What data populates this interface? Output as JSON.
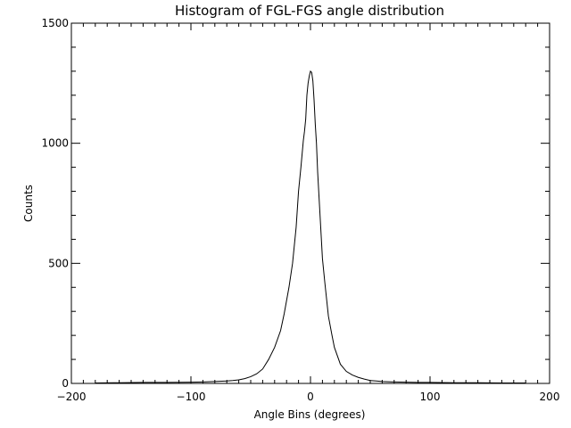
{
  "chart_data": {
    "type": "line",
    "title": "Histogram of FGL-FGS angle distribution",
    "xlabel": "Angle Bins (degrees)",
    "ylabel": "Counts",
    "xlim": [
      -200,
      200
    ],
    "ylim": [
      0,
      1500
    ],
    "x_ticks": [
      -200,
      -100,
      0,
      100,
      200
    ],
    "x_tick_labels": [
      "−200",
      "−100",
      "0",
      "100",
      "200"
    ],
    "y_ticks": [
      0,
      500,
      1000,
      1500
    ],
    "y_tick_labels": [
      "0",
      "500",
      "1000",
      "1500"
    ],
    "grid": false,
    "series": [
      {
        "x": [
          -180,
          -160,
          -140,
          -120,
          -100,
          -90,
          -80,
          -70,
          -65,
          -60,
          -55,
          -50,
          -45,
          -40,
          -35,
          -30,
          -25,
          -22,
          -18,
          -15,
          -12,
          -10,
          -8,
          -6,
          -5,
          -4,
          -3,
          -2,
          -1,
          0,
          1,
          2,
          3,
          4,
          5,
          6,
          8,
          10,
          12,
          15,
          18,
          20,
          25,
          30,
          35,
          40,
          45,
          50,
          55,
          60,
          70,
          80,
          90,
          100,
          120,
          140,
          160,
          180
        ],
        "values": [
          2,
          3,
          4,
          4,
          5,
          6,
          8,
          10,
          12,
          15,
          20,
          28,
          40,
          60,
          100,
          150,
          220,
          290,
          400,
          500,
          650,
          800,
          900,
          1010,
          1050,
          1100,
          1200,
          1250,
          1280,
          1300,
          1295,
          1260,
          1180,
          1080,
          1000,
          880,
          700,
          520,
          420,
          280,
          200,
          150,
          80,
          50,
          35,
          25,
          18,
          12,
          10,
          8,
          6,
          5,
          4,
          4,
          3,
          3,
          2,
          2
        ]
      }
    ]
  }
}
